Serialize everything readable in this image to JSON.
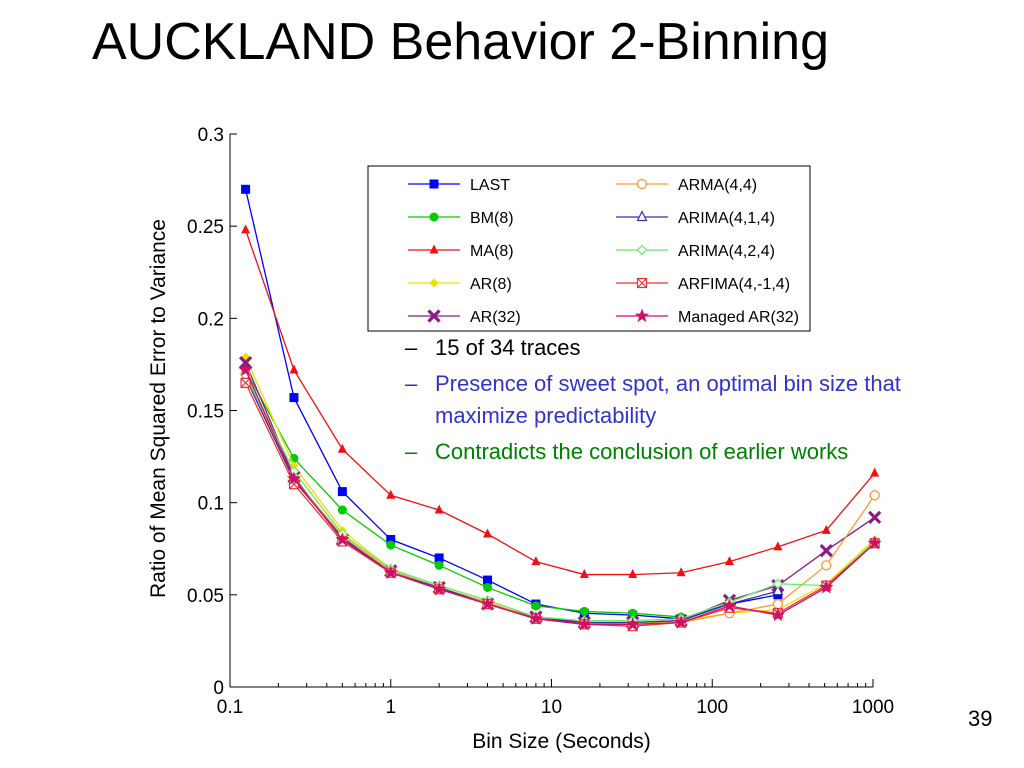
{
  "slide": {
    "title": "AUCKLAND Behavior 2-Binning",
    "page_number": "39",
    "bullets": [
      {
        "text": "15 of 34 traces",
        "color": "#000000"
      },
      {
        "text": "Presence of sweet spot, an optimal bin size that maximize predictability",
        "color": "#3333cc"
      },
      {
        "text": "Contradicts the conclusion of earlier works",
        "color": "#008000"
      }
    ]
  },
  "chart_data": {
    "type": "line",
    "title": "",
    "xlabel": "Bin Size (Seconds)",
    "ylabel": "Ratio of Mean Squared Error to Variance",
    "xscale": "log",
    "xlim": [
      0.1,
      1000
    ],
    "ylim": [
      0,
      0.3
    ],
    "x_ticks": [
      0.1,
      1,
      10,
      100,
      1000
    ],
    "x_tick_labels": [
      "0.1",
      "1",
      "10",
      "100",
      "1000"
    ],
    "y_ticks": [
      0,
      0.05,
      0.1,
      0.15,
      0.2,
      0.25,
      0.3
    ],
    "y_tick_labels": [
      "0",
      "0.05",
      "0.1",
      "0.15",
      "0.2",
      "0.25",
      "0.3"
    ],
    "grid": false,
    "legend_position": "top-right",
    "x": [
      0.125,
      0.25,
      0.5,
      1,
      2,
      4,
      8,
      16,
      32,
      64,
      128,
      256,
      512,
      1024
    ],
    "series": [
      {
        "name": "LAST",
        "color": "#0000ff",
        "marker": "square",
        "values": [
          0.27,
          0.157,
          0.106,
          0.08,
          0.07,
          0.058,
          0.045,
          0.04,
          0.039,
          0.037,
          0.045,
          0.05,
          null,
          null
        ]
      },
      {
        "name": "BM(8)",
        "color": "#00cc00",
        "marker": "circle",
        "values": [
          0.172,
          0.124,
          0.096,
          0.077,
          0.066,
          0.054,
          0.044,
          0.041,
          0.04,
          0.038,
          null,
          null,
          null,
          null
        ]
      },
      {
        "name": "MA(8)",
        "color": "#ee1111",
        "marker": "triangle",
        "values": [
          0.248,
          0.172,
          0.129,
          0.104,
          0.096,
          0.083,
          0.068,
          0.061,
          0.061,
          0.062,
          0.068,
          0.076,
          0.085,
          0.116
        ]
      },
      {
        "name": "AR(8)",
        "color": "#f0e000",
        "marker": "diamond",
        "values": [
          0.179,
          0.12,
          0.085,
          0.064,
          0.055,
          0.047,
          0.038,
          0.035,
          0.034,
          0.036,
          0.04,
          0.042,
          0.056,
          0.08
        ]
      },
      {
        "name": "AR(32)",
        "color": "#8b1a8b",
        "marker": "x",
        "values": [
          0.176,
          0.114,
          0.08,
          0.063,
          0.054,
          0.045,
          0.038,
          0.035,
          0.035,
          0.036,
          0.047,
          0.055,
          0.074,
          0.092
        ]
      },
      {
        "name": "ARMA(4,4)",
        "color": "#ff9933",
        "marker": "circle-open",
        "values": [
          0.17,
          0.113,
          0.082,
          0.063,
          0.054,
          0.046,
          0.037,
          0.034,
          0.034,
          0.035,
          0.04,
          0.045,
          0.066,
          0.104
        ]
      },
      {
        "name": "ARIMA(4,1,4)",
        "color": "#3333aa",
        "marker": "triangle-open",
        "values": [
          0.168,
          0.112,
          0.081,
          0.062,
          0.054,
          0.045,
          0.037,
          0.035,
          0.035,
          0.036,
          0.045,
          0.052,
          null,
          null
        ]
      },
      {
        "name": "ARIMA(4,2,4)",
        "color": "#66ee66",
        "marker": "diamond-open",
        "values": [
          0.169,
          0.117,
          0.083,
          0.064,
          0.055,
          0.047,
          0.038,
          0.036,
          0.036,
          0.037,
          0.046,
          0.056,
          0.055,
          0.079
        ]
      },
      {
        "name": "ARFIMA(4,-1,4)",
        "color": "#ee3333",
        "marker": "square-x",
        "values": [
          0.165,
          0.11,
          0.079,
          0.062,
          0.053,
          0.045,
          0.037,
          0.034,
          0.033,
          0.035,
          0.043,
          0.04,
          0.055,
          0.078
        ]
      },
      {
        "name": "Managed AR(32)",
        "color": "#cc1166",
        "marker": "star",
        "values": [
          0.172,
          0.113,
          0.08,
          0.062,
          0.053,
          0.045,
          0.037,
          0.034,
          0.034,
          0.035,
          0.044,
          0.039,
          0.054,
          0.078
        ]
      }
    ]
  }
}
